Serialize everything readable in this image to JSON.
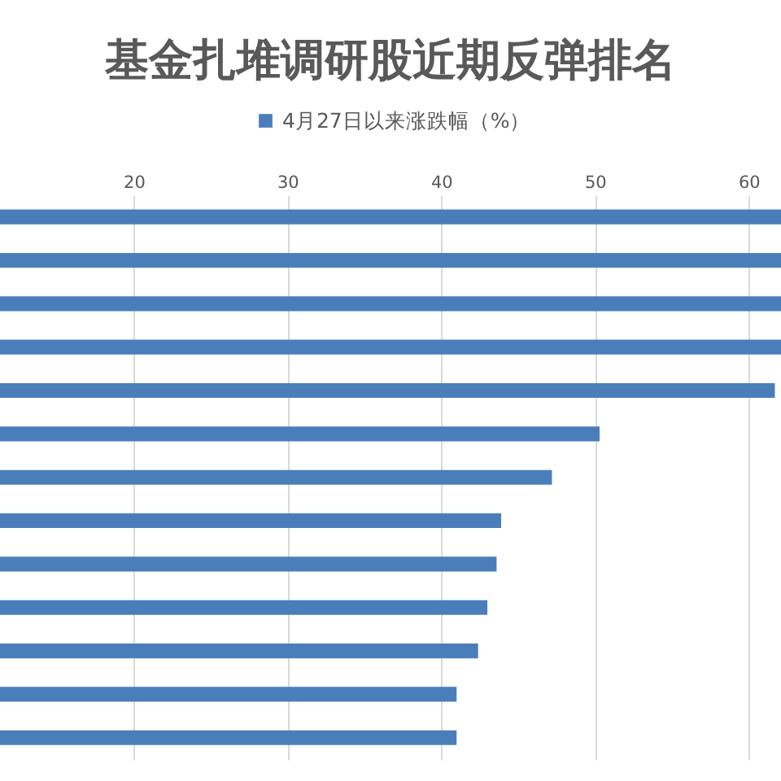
{
  "chart_data": {
    "type": "bar",
    "orientation": "horizontal",
    "title": "基金扎堆调研股近期反弹排名",
    "categories": [
      null,
      null,
      null,
      null,
      null,
      null,
      null,
      null,
      null,
      null,
      null,
      null,
      null
    ],
    "series": [
      {
        "name": "4月27日以来涨跌幅（%）",
        "color": "#4a7ebb",
        "values": [
          62.1,
          62.1,
          62.1,
          62.1,
          61.7,
          50.3,
          47.2,
          43.9,
          43.6,
          43.0,
          42.4,
          41.0,
          41.0
        ]
      }
    ],
    "xlim": [
      11.3,
      62.1
    ],
    "xticks": [
      20,
      30,
      40,
      50,
      60
    ],
    "grid": "x",
    "legend": "top"
  }
}
